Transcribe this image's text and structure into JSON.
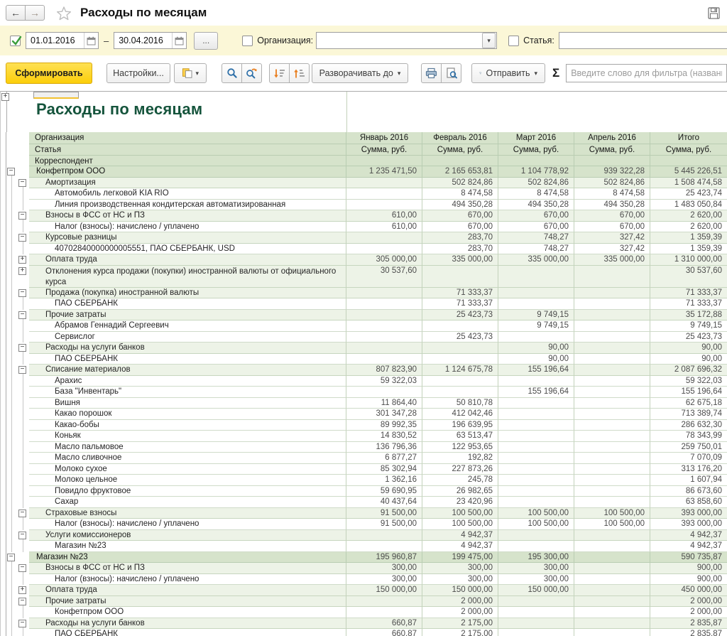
{
  "window": {
    "title": "Расходы по месяцам"
  },
  "icons": {
    "back_arrow": "←",
    "forward_arrow": "→",
    "caret_down": "▾",
    "sigma": "Σ",
    "dots": "...",
    "dash": "–",
    "minus": "−",
    "plus": "+"
  },
  "filter_bar": {
    "period_from": "01.01.2016",
    "period_to": "30.04.2016",
    "org_label": "Организация:",
    "org_value": "",
    "article_label": "Статья:",
    "article_value": ""
  },
  "toolbar": {
    "generate": "Сформировать",
    "settings": "Настройки...",
    "expand_to": "Разворачивать до",
    "send": "Отправить",
    "filter_placeholder": "Введите слово для фильтра (название)"
  },
  "report": {
    "title": "Расходы по месяцам",
    "header_rows": [
      "Организация",
      "Статья",
      "Корреспондент"
    ],
    "columns": [
      "Январь 2016",
      "Февраль 2016",
      "Март 2016",
      "Апрель 2016",
      "Итого"
    ],
    "subheader": "Сумма, руб.",
    "rows": [
      {
        "label": "Конфетпром ООО",
        "level": 0,
        "exp": "minus",
        "values": [
          "1 235 471,50",
          "2 165 653,81",
          "1 104 778,92",
          "939 322,28",
          "5 445 226,51"
        ]
      },
      {
        "label": "Амортизация",
        "level": 1,
        "exp": "minus",
        "values": [
          "",
          "502 824,86",
          "502 824,86",
          "502 824,86",
          "1 508 474,58"
        ]
      },
      {
        "label": "Автомобиль легковой KIA RIO",
        "level": 2,
        "values": [
          "",
          "8 474,58",
          "8 474,58",
          "8 474,58",
          "25 423,74"
        ]
      },
      {
        "label": "Линия производственная кондитерская автоматизированная",
        "level": 2,
        "values": [
          "",
          "494 350,28",
          "494 350,28",
          "494 350,28",
          "1 483 050,84"
        ]
      },
      {
        "label": "Взносы в ФСС от НС и ПЗ",
        "level": 1,
        "exp": "minus",
        "values": [
          "610,00",
          "670,00",
          "670,00",
          "670,00",
          "2 620,00"
        ]
      },
      {
        "label": "Налог (взносы): начислено / уплачено",
        "level": 2,
        "values": [
          "610,00",
          "670,00",
          "670,00",
          "670,00",
          "2 620,00"
        ]
      },
      {
        "label": "Курсовые разницы",
        "level": 1,
        "exp": "minus",
        "values": [
          "",
          "283,70",
          "748,27",
          "327,42",
          "1 359,39"
        ]
      },
      {
        "label": "40702840000000005551, ПАО СБЕРБАНК, USD",
        "level": 2,
        "values": [
          "",
          "283,70",
          "748,27",
          "327,42",
          "1 359,39"
        ]
      },
      {
        "label": "Оплата труда",
        "level": 1,
        "exp": "plus",
        "values": [
          "305 000,00",
          "335 000,00",
          "335 000,00",
          "335 000,00",
          "1 310 000,00"
        ]
      },
      {
        "label": "Отклонения курса продажи (покупки) иностранной валюты от официального курса",
        "level": 1,
        "exp": "plus",
        "wrap": true,
        "values": [
          "30 537,60",
          "",
          "",
          "",
          "30 537,60"
        ]
      },
      {
        "label": "Продажа (покупка) иностранной валюты",
        "level": 1,
        "exp": "minus",
        "values": [
          "",
          "71 333,37",
          "",
          "",
          "71 333,37"
        ]
      },
      {
        "label": "ПАО СБЕРБАНК",
        "level": 2,
        "values": [
          "",
          "71 333,37",
          "",
          "",
          "71 333,37"
        ]
      },
      {
        "label": "Прочие затраты",
        "level": 1,
        "exp": "minus",
        "values": [
          "",
          "25 423,73",
          "9 749,15",
          "",
          "35 172,88"
        ]
      },
      {
        "label": "Абрамов Геннадий Сергеевич",
        "level": 2,
        "values": [
          "",
          "",
          "9 749,15",
          "",
          "9 749,15"
        ]
      },
      {
        "label": "Сервислог",
        "level": 2,
        "values": [
          "",
          "25 423,73",
          "",
          "",
          "25 423,73"
        ]
      },
      {
        "label": "Расходы на услуги банков",
        "level": 1,
        "exp": "minus",
        "values": [
          "",
          "",
          "90,00",
          "",
          "90,00"
        ]
      },
      {
        "label": "ПАО СБЕРБАНК",
        "level": 2,
        "values": [
          "",
          "",
          "90,00",
          "",
          "90,00"
        ]
      },
      {
        "label": "Списание материалов",
        "level": 1,
        "exp": "minus",
        "values": [
          "807 823,90",
          "1 124 675,78",
          "155 196,64",
          "",
          "2 087 696,32"
        ]
      },
      {
        "label": "Арахис",
        "level": 2,
        "values": [
          "59 322,03",
          "",
          "",
          "",
          "59 322,03"
        ]
      },
      {
        "label": "База \"Инвентарь\"",
        "level": 2,
        "values": [
          "",
          "",
          "155 196,64",
          "",
          "155 196,64"
        ]
      },
      {
        "label": "Вишня",
        "level": 2,
        "values": [
          "11 864,40",
          "50 810,78",
          "",
          "",
          "62 675,18"
        ]
      },
      {
        "label": "Какао порошок",
        "level": 2,
        "values": [
          "301 347,28",
          "412 042,46",
          "",
          "",
          "713 389,74"
        ]
      },
      {
        "label": "Какао-бобы",
        "level": 2,
        "values": [
          "89 992,35",
          "196 639,95",
          "",
          "",
          "286 632,30"
        ]
      },
      {
        "label": "Коньяк",
        "level": 2,
        "values": [
          "14 830,52",
          "63 513,47",
          "",
          "",
          "78 343,99"
        ]
      },
      {
        "label": "Масло пальмовое",
        "level": 2,
        "values": [
          "136 796,36",
          "122 953,65",
          "",
          "",
          "259 750,01"
        ]
      },
      {
        "label": "Масло сливочное",
        "level": 2,
        "values": [
          "6 877,27",
          "192,82",
          "",
          "",
          "7 070,09"
        ]
      },
      {
        "label": "Молоко сухое",
        "level": 2,
        "values": [
          "85 302,94",
          "227 873,26",
          "",
          "",
          "313 176,20"
        ]
      },
      {
        "label": "Молоко цельное",
        "level": 2,
        "values": [
          "1 362,16",
          "245,78",
          "",
          "",
          "1 607,94"
        ]
      },
      {
        "label": "Повидло фруктовое",
        "level": 2,
        "values": [
          "59 690,95",
          "26 982,65",
          "",
          "",
          "86 673,60"
        ]
      },
      {
        "label": "Сахар",
        "level": 2,
        "values": [
          "40 437,64",
          "23 420,96",
          "",
          "",
          "63 858,60"
        ]
      },
      {
        "label": "Страховые взносы",
        "level": 1,
        "exp": "minus",
        "values": [
          "91 500,00",
          "100 500,00",
          "100 500,00",
          "100 500,00",
          "393 000,00"
        ]
      },
      {
        "label": "Налог (взносы): начислено / уплачено",
        "level": 2,
        "values": [
          "91 500,00",
          "100 500,00",
          "100 500,00",
          "100 500,00",
          "393 000,00"
        ]
      },
      {
        "label": "Услуги комиссионеров",
        "level": 1,
        "exp": "minus",
        "values": [
          "",
          "4 942,37",
          "",
          "",
          "4 942,37"
        ]
      },
      {
        "label": "Магазин №23",
        "level": 2,
        "values": [
          "",
          "4 942,37",
          "",
          "",
          "4 942,37"
        ]
      },
      {
        "label": "Магазин №23",
        "level": 0,
        "exp": "minus",
        "values": [
          "195 960,87",
          "199 475,00",
          "195 300,00",
          "",
          "590 735,87"
        ]
      },
      {
        "label": "Взносы в ФСС от НС и ПЗ",
        "level": 1,
        "exp": "minus",
        "values": [
          "300,00",
          "300,00",
          "300,00",
          "",
          "900,00"
        ]
      },
      {
        "label": "Налог (взносы): начислено / уплачено",
        "level": 2,
        "values": [
          "300,00",
          "300,00",
          "300,00",
          "",
          "900,00"
        ]
      },
      {
        "label": "Оплата труда",
        "level": 1,
        "exp": "plus",
        "values": [
          "150 000,00",
          "150 000,00",
          "150 000,00",
          "",
          "450 000,00"
        ]
      },
      {
        "label": "Прочие затраты",
        "level": 1,
        "exp": "minus",
        "values": [
          "",
          "2 000,00",
          "",
          "",
          "2 000,00"
        ]
      },
      {
        "label": "Конфетпром ООО",
        "level": 2,
        "values": [
          "",
          "2 000,00",
          "",
          "",
          "2 000,00"
        ]
      },
      {
        "label": "Расходы на услуги банков",
        "level": 1,
        "exp": "minus",
        "values": [
          "660,87",
          "2 175,00",
          "",
          "",
          "2 835,87"
        ]
      },
      {
        "label": "ПАО СБЕРБАНК",
        "level": 2,
        "values": [
          "660,87",
          "2 175,00",
          "",
          "",
          "2 835,87"
        ]
      }
    ]
  }
}
